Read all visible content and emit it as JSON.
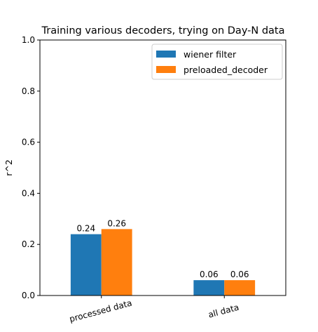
{
  "chart_data": {
    "type": "bar",
    "title": "Training various decoders, trying on Day-N data",
    "xlabel": "",
    "ylabel": "r^2",
    "categories": [
      "processed data",
      "all data"
    ],
    "series": [
      {
        "name": "wiener filter",
        "color": "#1f77b4",
        "values": [
          0.24,
          0.06
        ]
      },
      {
        "name": "preloaded_decoder",
        "color": "#ff7f0e",
        "values": [
          0.26,
          0.06
        ]
      }
    ],
    "ylim": [
      0,
      1.0
    ],
    "yticks": [
      "0.0",
      "0.2",
      "0.4",
      "0.6",
      "0.8",
      "1.0"
    ],
    "data_labels": [
      [
        "0.24",
        "0.06"
      ],
      [
        "0.26",
        "0.06"
      ]
    ],
    "grid": false,
    "legend": "top-right",
    "xtick_rotation_deg": 15
  }
}
